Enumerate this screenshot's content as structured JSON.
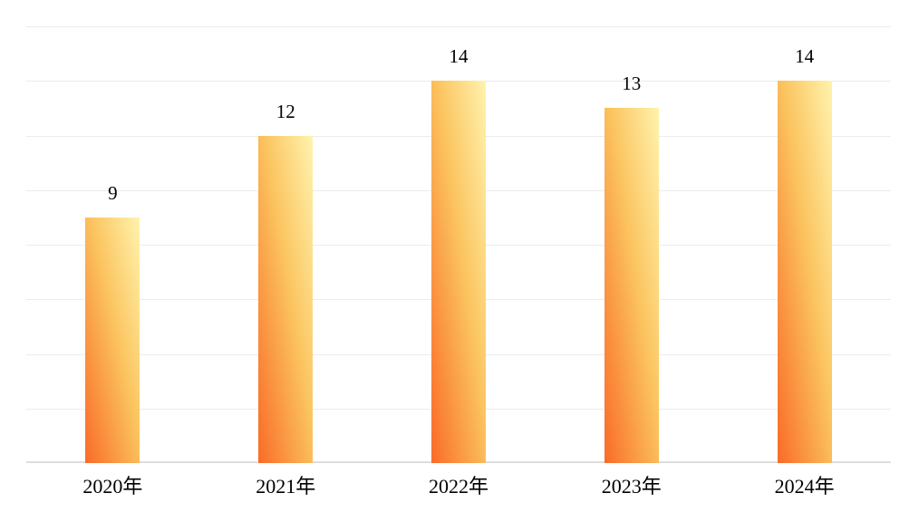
{
  "chart_data": {
    "type": "bar",
    "title": "",
    "xlabel": "",
    "ylabel": "",
    "categories": [
      "2020年",
      "2021年",
      "2022年",
      "2023年",
      "2024年"
    ],
    "values": [
      9,
      12,
      14,
      13,
      14
    ],
    "data_labels": [
      "9",
      "12",
      "14",
      "13",
      "14"
    ],
    "ylim": [
      0,
      16
    ],
    "gridline_step": 2,
    "grid": true,
    "y_tick_labels_visible": false,
    "legend_position": "none",
    "colors": {
      "background": "#FFFFFF",
      "bar_gradient_light": "#FFF3AE",
      "bar_gradient_mid": "#FBC45F",
      "bar_gradient_dark": "#F96B28",
      "gridline": "#ECECEC",
      "baseline": "#DEDEDE",
      "label_text": "#000000"
    }
  }
}
